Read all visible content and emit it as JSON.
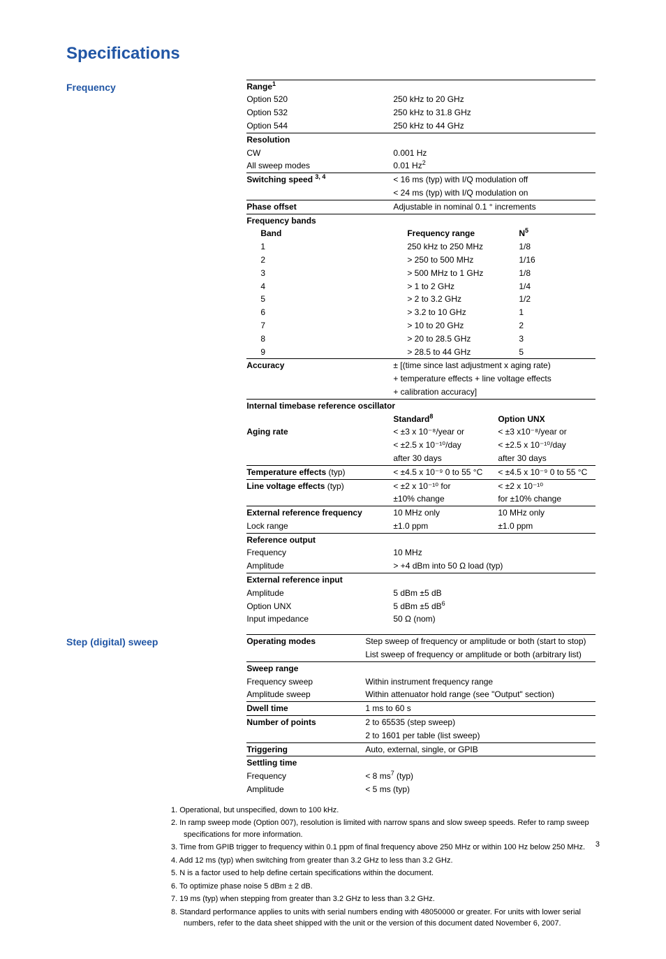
{
  "page": {
    "title": "Specifications",
    "number": "3"
  },
  "colors": {
    "heading": "#2156a5",
    "text": "#000000",
    "rule": "#000000"
  },
  "frequency": {
    "label": "Frequency",
    "range": {
      "header": "Range",
      "sup": "1",
      "rows": [
        {
          "l": "Option 520",
          "v": "250 kHz to 20 GHz"
        },
        {
          "l": "Option 532",
          "v": "250 kHz to 31.8 GHz"
        },
        {
          "l": "Option 544",
          "v": "250 kHz to 44 GHz"
        }
      ]
    },
    "resolution": {
      "header": "Resolution",
      "rows": [
        {
          "l": "CW",
          "v": "0.001 Hz"
        },
        {
          "l": "All sweep modes",
          "v": "0.01 Hz",
          "sup": "2"
        }
      ]
    },
    "switching": {
      "header": "Switching speed",
      "sup": "3, 4",
      "lines": [
        "< 16 ms (typ) with I/Q modulation off",
        "< 24 ms (typ) with I/Q modulation on"
      ]
    },
    "phase_offset": {
      "l": "Phase offset",
      "v": "Adjustable in nominal 0.1 ° increments"
    },
    "bands": {
      "header": "Frequency bands",
      "cols": {
        "band": "Band",
        "range": "Frequency range",
        "n": "N",
        "nsup": "5"
      },
      "rows": [
        {
          "b": "1",
          "r": "250 kHz to 250 MHz",
          "n": "1/8"
        },
        {
          "b": "2",
          "r": "> 250 to 500 MHz",
          "n": "1/16"
        },
        {
          "b": "3",
          "r": "> 500 MHz to 1 GHz",
          "n": "1/8"
        },
        {
          "b": "4",
          "r": "> 1 to 2 GHz",
          "n": "1/4"
        },
        {
          "b": "5",
          "r": "> 2 to 3.2 GHz",
          "n": "1/2"
        },
        {
          "b": "6",
          "r": "> 3.2 to 10 GHz",
          "n": "1"
        },
        {
          "b": "7",
          "r": "> 10 to 20 GHz",
          "n": "2"
        },
        {
          "b": "8",
          "r": "> 20 to 28.5 GHz",
          "n": "3"
        },
        {
          "b": "9",
          "r": "> 28.5 to 44 GHz",
          "n": "5"
        }
      ]
    },
    "accuracy": {
      "l": "Accuracy",
      "lines": [
        "± [(time since last adjustment x aging rate)",
        "+ temperature effects + line voltage effects",
        "+ calibration accuracy]"
      ]
    },
    "timebase": {
      "header": "Internal timebase reference oscillator",
      "std_header": "Standard",
      "std_sup": "8",
      "unx_header": "Option UNX",
      "aging": {
        "l": "Aging rate",
        "std": [
          "< ±3 x 10⁻⁸/year or",
          "< ±2.5 x 10⁻¹⁰/day",
          "after 30 days"
        ],
        "unx": [
          "< ±3 x10⁻⁸/year or",
          "< ±2.5 x 10⁻¹⁰/day",
          "after 30 days"
        ]
      },
      "temp": {
        "l": "Temperature effects",
        "typ": "(typ)",
        "std": "< ±4.5 x 10⁻⁹ 0 to 55 °C",
        "unx": "< ±4.5 x 10⁻⁹ 0 to 55 °C"
      },
      "line": {
        "l": "Line voltage effects",
        "typ": "(typ)",
        "std1": "< ±2 x 10⁻¹⁰ for",
        "std2": "±10% change",
        "unx1": "< ±2 x 10⁻¹⁰",
        "unx2": "for ±10% change"
      },
      "extref": {
        "l": "External reference frequency",
        "std": "10 MHz only",
        "unx": "10 MHz only"
      },
      "lock": {
        "l": "Lock range",
        "std": "±1.0 ppm",
        "unx": "±1.0 ppm"
      }
    },
    "ref_out": {
      "header": "Reference output",
      "rows": [
        {
          "l": "Frequency",
          "v": "10 MHz"
        },
        {
          "l": "Amplitude",
          "v": "> +4 dBm into 50 Ω load (typ)"
        }
      ]
    },
    "ext_in": {
      "header": "External reference input",
      "rows": [
        {
          "l": "Amplitude",
          "v": "5 dBm ±5 dB"
        },
        {
          "l": "Option UNX",
          "v": "5 dBm ±5 dB",
          "sup": "6"
        },
        {
          "l": "Input impedance",
          "v": "50 Ω (nom)"
        }
      ]
    }
  },
  "step_sweep": {
    "label": "Step (digital) sweep",
    "op_modes": {
      "l": "Operating modes",
      "lines": [
        "Step sweep of frequency or amplitude or both (start to stop)",
        "List sweep of frequency or amplitude or both (arbitrary list)"
      ]
    },
    "range": {
      "header": "Sweep range",
      "rows": [
        {
          "l": "Frequency sweep",
          "v": "Within instrument frequency range"
        },
        {
          "l": "Amplitude sweep",
          "v": "Within attenuator hold range (see \"Output\" section)"
        }
      ]
    },
    "dwell": {
      "l": "Dwell time",
      "v": "1 ms to 60 s"
    },
    "points": {
      "l": "Number of points",
      "lines": [
        "2 to 65535 (step sweep)",
        "2 to 1601 per table (list sweep)"
      ]
    },
    "trigger": {
      "l": "Triggering",
      "v": "Auto, external, single, or GPIB"
    },
    "settle": {
      "header": "Settling time",
      "rows": [
        {
          "l": "Frequency",
          "v": "< 8 ms",
          "sup": "7",
          "tail": " (typ)"
        },
        {
          "l": "Amplitude",
          "v": "< 5 ms (typ)"
        }
      ]
    }
  },
  "footnotes": [
    "1. Operational, but unspecified, down to 100 kHz.",
    "2. In ramp sweep mode (Option 007), resolution is limited with narrow spans and slow sweep speeds. Refer to ramp sweep specifications for more information.",
    "3. Time from GPIB trigger to frequency within 0.1 ppm of final frequency above 250 MHz or within 100 Hz below 250 MHz.",
    "4. Add 12 ms (typ) when switching from greater than 3.2 GHz to less than 3.2 GHz.",
    "5. N is a factor used to help define certain specifications within the document.",
    "6. To optimize phase noise 5 dBm ± 2 dB.",
    "7. 19 ms (typ) when stepping from greater than 3.2 GHz to less than 3.2 GHz.",
    "8. Standard performance applies to units with serial numbers ending with 48050000 or greater. For units with lower serial numbers, refer to the data sheet shipped with the unit or the version of this document dated November 6, 2007."
  ]
}
